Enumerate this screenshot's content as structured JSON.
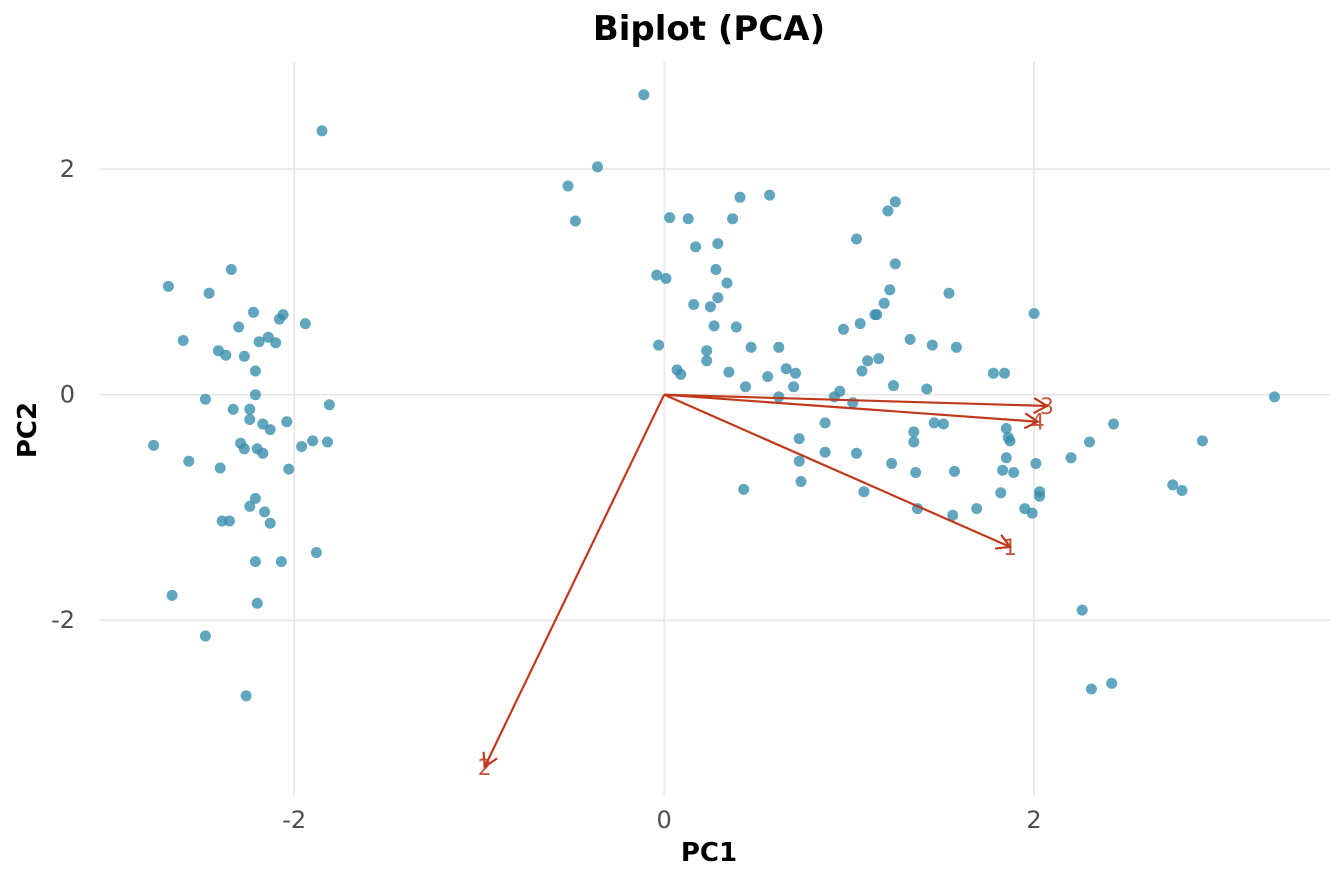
{
  "chart_data": {
    "type": "scatter",
    "title": "Biplot (PCA)",
    "xlabel": "PC1",
    "ylabel": "PC2",
    "xlim": [
      -3.05,
      3.6
    ],
    "ylim": [
      -3.55,
      2.95
    ],
    "xticks": [
      -2,
      0,
      2
    ],
    "yticks": [
      -2,
      0,
      2
    ],
    "grid": true,
    "colors": {
      "points": "#3a8fae",
      "loadings": "#c0391b"
    },
    "points": [
      [
        -2.76,
        -0.45
      ],
      [
        -2.68,
        0.96
      ],
      [
        -2.66,
        -1.78
      ],
      [
        -2.6,
        0.48
      ],
      [
        -2.57,
        -0.59
      ],
      [
        -2.48,
        -2.14
      ],
      [
        -2.48,
        -0.04
      ],
      [
        -2.46,
        0.9
      ],
      [
        -2.41,
        0.39
      ],
      [
        -2.4,
        -0.65
      ],
      [
        -2.39,
        -1.12
      ],
      [
        -2.37,
        0.35
      ],
      [
        -2.35,
        -1.12
      ],
      [
        -2.34,
        1.11
      ],
      [
        -2.33,
        -0.13
      ],
      [
        -2.3,
        0.6
      ],
      [
        -2.29,
        -0.43
      ],
      [
        -2.27,
        0.34
      ],
      [
        -2.27,
        -0.48
      ],
      [
        -2.26,
        -2.67
      ],
      [
        -2.24,
        -0.22
      ],
      [
        -2.24,
        -0.13
      ],
      [
        -2.24,
        -0.99
      ],
      [
        -2.22,
        0.73
      ],
      [
        -2.21,
        0.21
      ],
      [
        -2.21,
        0.0
      ],
      [
        -2.21,
        -0.92
      ],
      [
        -2.21,
        -1.48
      ],
      [
        -2.2,
        -1.85
      ],
      [
        -2.2,
        -0.48
      ],
      [
        -2.19,
        0.47
      ],
      [
        -2.17,
        -0.52
      ],
      [
        -2.17,
        -0.26
      ],
      [
        -2.16,
        -1.04
      ],
      [
        -2.14,
        0.51
      ],
      [
        -2.13,
        -0.31
      ],
      [
        -2.13,
        -1.14
      ],
      [
        -2.1,
        0.46
      ],
      [
        -2.08,
        0.67
      ],
      [
        -2.07,
        -1.48
      ],
      [
        -2.06,
        0.71
      ],
      [
        -2.04,
        -0.24
      ],
      [
        -2.03,
        -0.66
      ],
      [
        -1.96,
        -0.46
      ],
      [
        -1.94,
        0.63
      ],
      [
        -1.9,
        -0.41
      ],
      [
        -1.88,
        -1.4
      ],
      [
        -1.85,
        2.34
      ],
      [
        -1.82,
        -0.42
      ],
      [
        -1.81,
        -0.09
      ],
      [
        -0.52,
        1.85
      ],
      [
        -0.48,
        1.54
      ],
      [
        -0.36,
        2.02
      ],
      [
        -0.11,
        2.66
      ],
      [
        -0.04,
        1.06
      ],
      [
        -0.03,
        0.44
      ],
      [
        0.01,
        1.03
      ],
      [
        0.03,
        1.57
      ],
      [
        0.07,
        0.22
      ],
      [
        0.09,
        0.18
      ],
      [
        0.13,
        1.56
      ],
      [
        0.16,
        0.8
      ],
      [
        0.17,
        1.31
      ],
      [
        0.23,
        0.39
      ],
      [
        0.23,
        0.3
      ],
      [
        0.25,
        0.78
      ],
      [
        0.27,
        0.61
      ],
      [
        0.28,
        1.11
      ],
      [
        0.29,
        1.34
      ],
      [
        0.29,
        0.86
      ],
      [
        0.34,
        0.99
      ],
      [
        0.35,
        0.2
      ],
      [
        0.37,
        1.56
      ],
      [
        0.39,
        0.6
      ],
      [
        0.41,
        1.75
      ],
      [
        0.43,
        -0.84
      ],
      [
        0.44,
        0.07
      ],
      [
        0.47,
        0.42
      ],
      [
        0.56,
        0.16
      ],
      [
        0.57,
        1.77
      ],
      [
        0.62,
        -0.02
      ],
      [
        0.62,
        0.42
      ],
      [
        0.66,
        0.23
      ],
      [
        0.7,
        0.07
      ],
      [
        0.71,
        0.19
      ],
      [
        0.73,
        -0.59
      ],
      [
        0.73,
        -0.39
      ],
      [
        0.74,
        -0.77
      ],
      [
        0.87,
        -0.25
      ],
      [
        0.87,
        -0.51
      ],
      [
        0.92,
        -0.02
      ],
      [
        0.95,
        0.03
      ],
      [
        0.97,
        0.58
      ],
      [
        1.02,
        -0.07
      ],
      [
        1.04,
        1.38
      ],
      [
        1.04,
        -0.52
      ],
      [
        1.06,
        0.63
      ],
      [
        1.07,
        0.21
      ],
      [
        1.08,
        -0.86
      ],
      [
        1.1,
        0.3
      ],
      [
        1.14,
        0.71
      ],
      [
        1.15,
        0.71
      ],
      [
        1.16,
        0.32
      ],
      [
        1.19,
        0.81
      ],
      [
        1.21,
        1.63
      ],
      [
        1.22,
        0.93
      ],
      [
        1.23,
        -0.61
      ],
      [
        1.24,
        0.08
      ],
      [
        1.25,
        1.71
      ],
      [
        1.25,
        1.16
      ],
      [
        1.33,
        0.49
      ],
      [
        1.35,
        -0.42
      ],
      [
        1.35,
        -0.33
      ],
      [
        1.36,
        -0.69
      ],
      [
        1.37,
        -1.01
      ],
      [
        1.42,
        0.05
      ],
      [
        1.45,
        0.44
      ],
      [
        1.46,
        -0.25
      ],
      [
        1.51,
        -0.26
      ],
      [
        1.54,
        0.9
      ],
      [
        1.56,
        -1.07
      ],
      [
        1.57,
        -0.68
      ],
      [
        1.58,
        0.42
      ],
      [
        1.69,
        -1.01
      ],
      [
        1.78,
        0.19
      ],
      [
        1.82,
        -0.87
      ],
      [
        1.83,
        -0.67
      ],
      [
        1.84,
        0.19
      ],
      [
        1.85,
        -0.56
      ],
      [
        1.85,
        -0.3
      ],
      [
        1.86,
        -0.38
      ],
      [
        1.87,
        -0.41
      ],
      [
        1.89,
        -0.69
      ],
      [
        1.95,
        -1.01
      ],
      [
        1.99,
        -1.05
      ],
      [
        2.0,
        0.72
      ],
      [
        2.01,
        -0.61
      ],
      [
        2.03,
        -0.9
      ],
      [
        2.03,
        -0.86
      ],
      [
        2.2,
        -0.56
      ],
      [
        2.26,
        -1.91
      ],
      [
        2.3,
        -0.42
      ],
      [
        2.31,
        -2.61
      ],
      [
        2.42,
        -2.56
      ],
      [
        2.43,
        -0.26
      ],
      [
        2.75,
        -0.8
      ],
      [
        2.8,
        -0.85
      ],
      [
        2.91,
        -0.41
      ],
      [
        3.3,
        -0.02
      ]
    ],
    "loadings": [
      {
        "label": "1",
        "x": 1.87,
        "y": -1.35
      },
      {
        "label": "2",
        "x": -0.97,
        "y": -3.3
      },
      {
        "label": "3",
        "x": 2.07,
        "y": -0.1
      },
      {
        "label": "4",
        "x": 2.02,
        "y": -0.24
      }
    ]
  }
}
